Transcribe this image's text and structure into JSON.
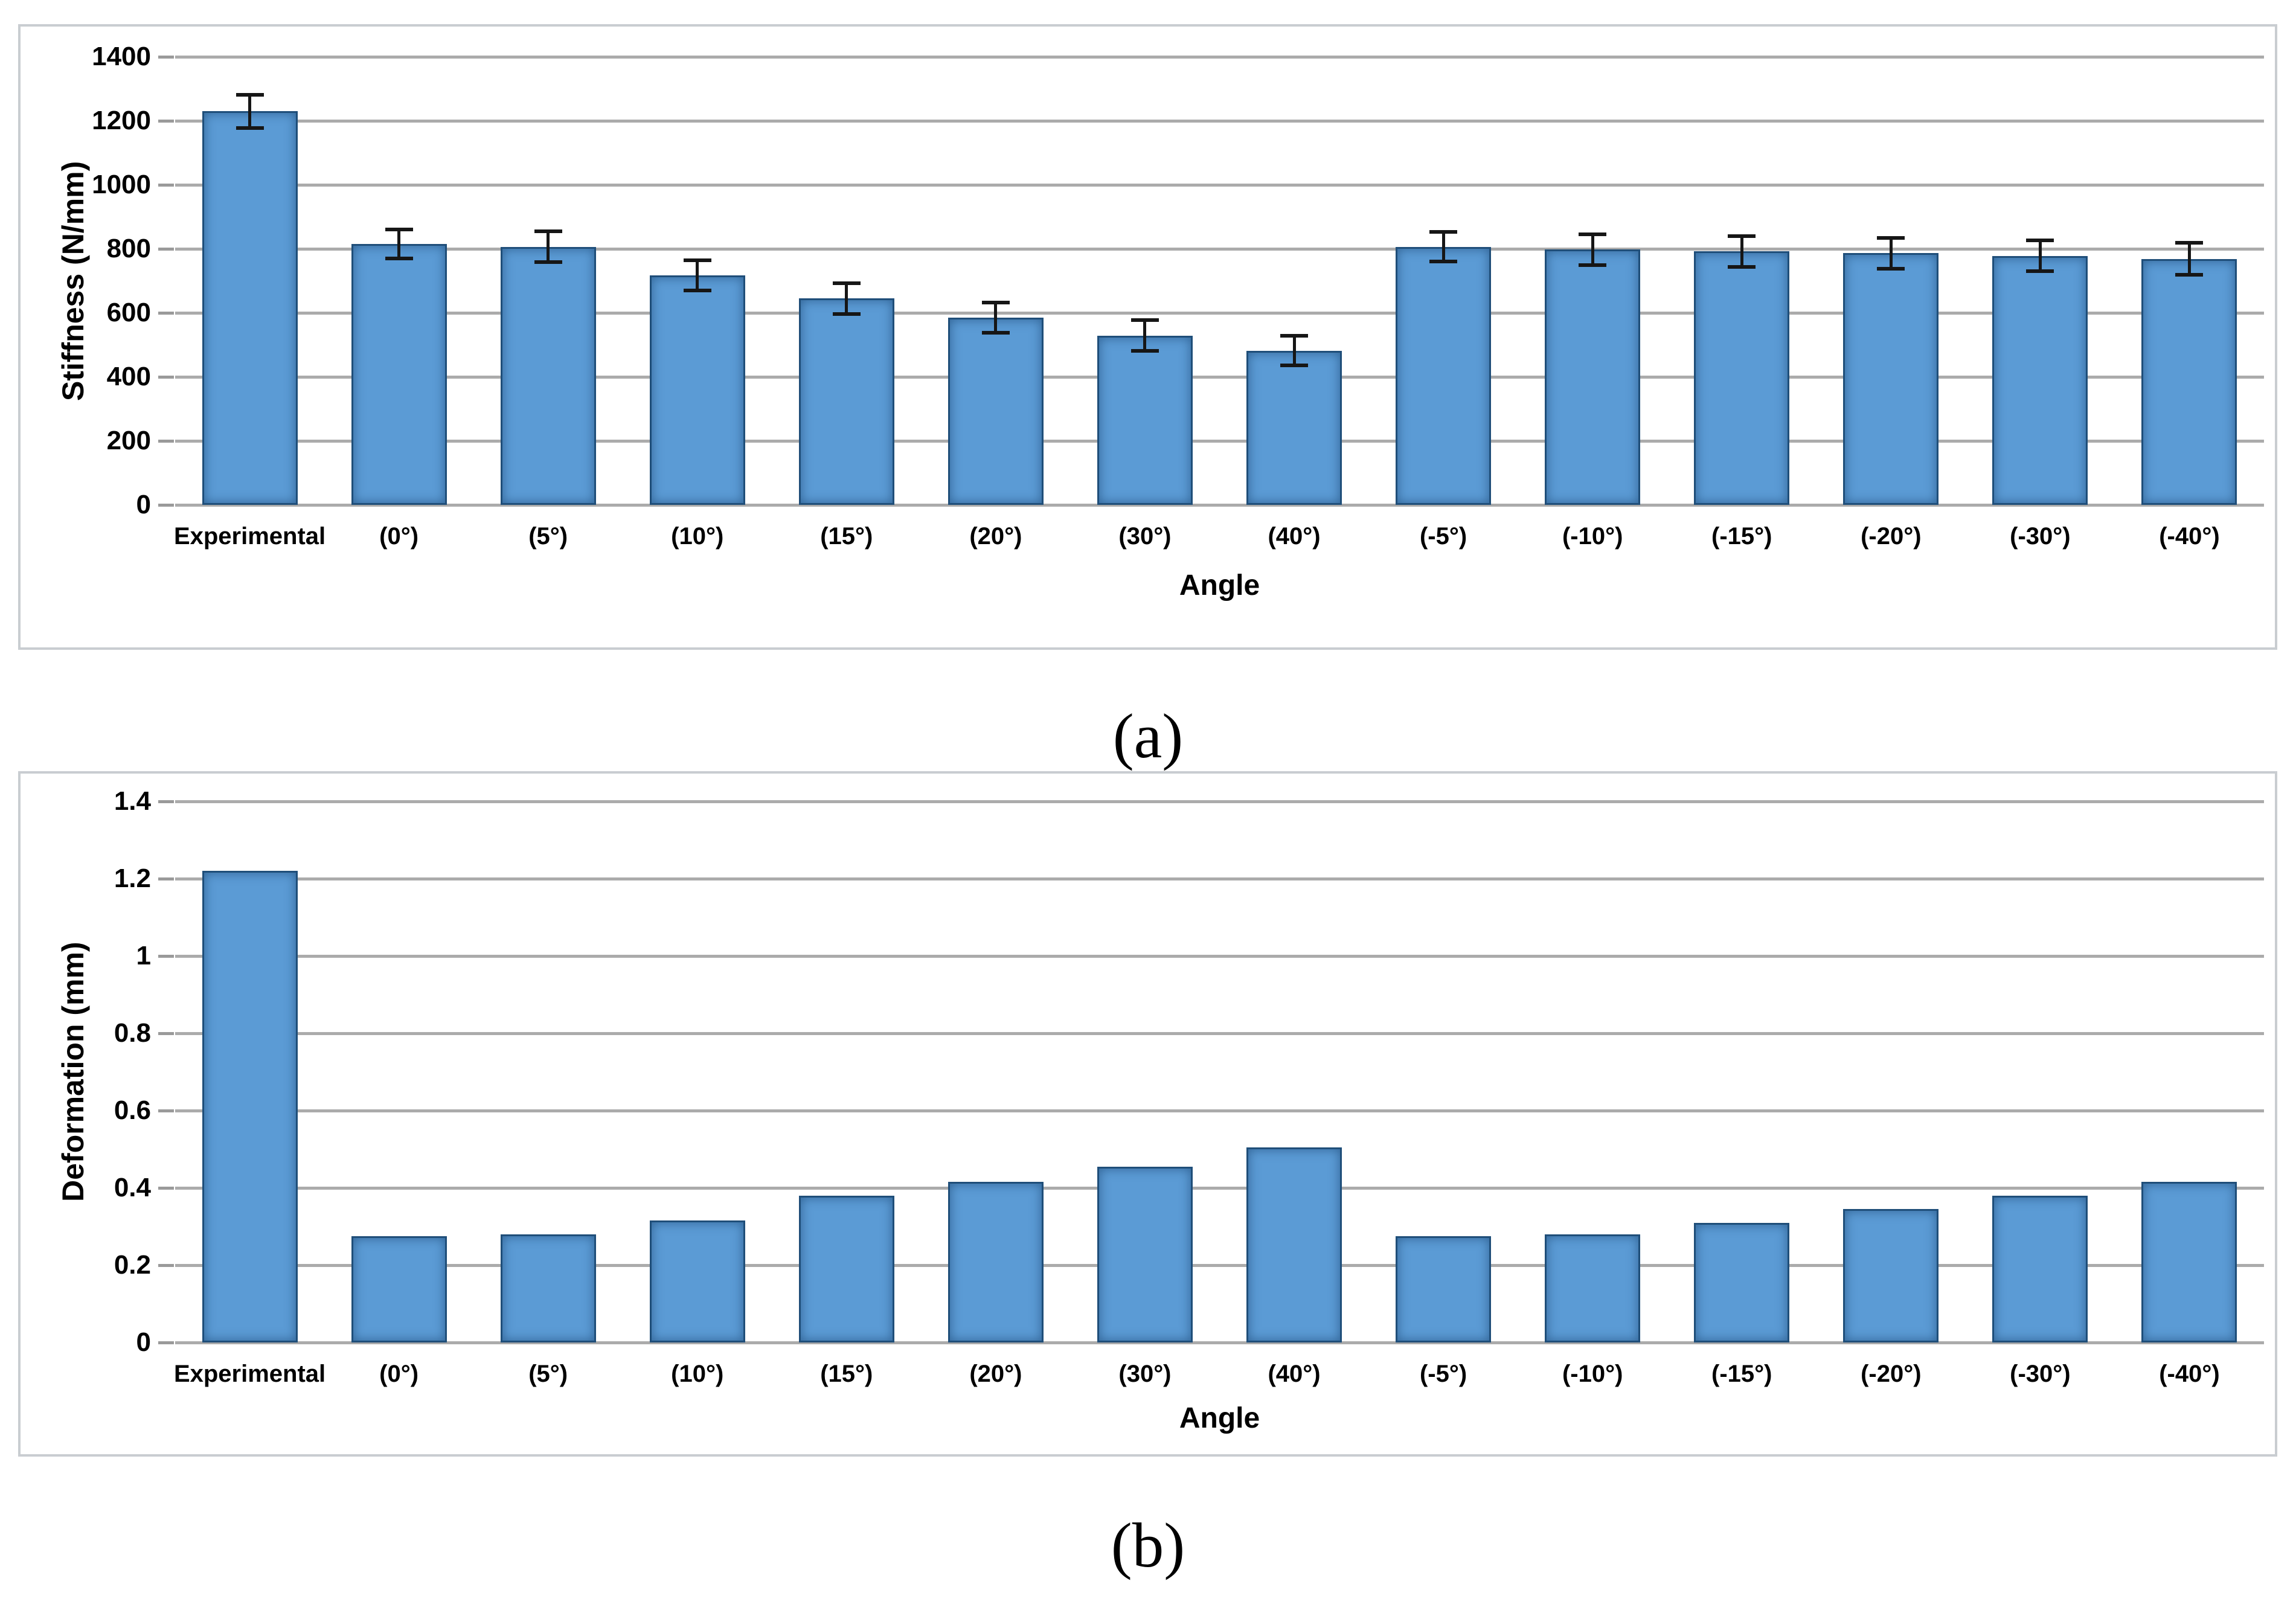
{
  "page": {
    "background": "#ffffff",
    "captions": {
      "a": "(a)",
      "b": "(b)"
    }
  },
  "colors": {
    "bar_fill": "#5b9bd5",
    "bar_border": "#1f4e79",
    "gridline": "#ababab",
    "tick": "#9a9a9a",
    "panel_border": "#c9cdd1",
    "error_bar": "#161616",
    "text": "#000000"
  },
  "chart_data": [
    {
      "id": "stiffness",
      "type": "bar",
      "title": "",
      "xlabel": "Angle",
      "ylabel": "Stiffness (N/mm)",
      "ylim": [
        0,
        1400
      ],
      "ytick_step": 200,
      "yticks": [
        0,
        200,
        400,
        600,
        800,
        1000,
        1200,
        1400
      ],
      "ytick_labels": [
        "0",
        "200",
        "400",
        "600",
        "800",
        "1000",
        "1200",
        "1400"
      ],
      "grid": true,
      "legend": "none",
      "categories": [
        "Experimental",
        "(0°)",
        "(5°)",
        "(10°)",
        "(15°)",
        "(20°)",
        "(30°)",
        "(40°)",
        "(-5°)",
        "(-10°)",
        "(-15°)",
        "(-20°)",
        "(-30°)",
        "(-40°)"
      ],
      "values": [
        1230,
        815,
        806,
        717,
        645,
        585,
        529,
        482,
        806,
        798,
        792,
        786,
        778,
        768
      ],
      "errors": [
        52,
        45,
        48,
        47,
        48,
        48,
        48,
        47,
        46,
        48,
        48,
        48,
        48,
        50
      ],
      "caption": "(a)"
    },
    {
      "id": "deformation",
      "type": "bar",
      "title": "",
      "xlabel": "Angle",
      "ylabel": "Deformation (mm)",
      "ylim": [
        0,
        1.4
      ],
      "ytick_step": 0.2,
      "yticks": [
        0,
        0.2,
        0.4,
        0.6,
        0.8,
        1,
        1.2,
        1.4
      ],
      "ytick_labels": [
        "0",
        "0.2",
        "0.4",
        "0.6",
        "0.8",
        "1",
        "1.2",
        "1.4"
      ],
      "grid": true,
      "legend": "none",
      "categories": [
        "Experimental",
        "(0°)",
        "(5°)",
        "(10°)",
        "(15°)",
        "(20°)",
        "(30°)",
        "(40°)",
        "(-5°)",
        "(-10°)",
        "(-15°)",
        "(-20°)",
        "(-30°)",
        "(-40°)"
      ],
      "values": [
        1.22,
        0.275,
        0.28,
        0.315,
        0.38,
        0.415,
        0.455,
        0.505,
        0.275,
        0.28,
        0.31,
        0.345,
        0.38,
        0.415
      ],
      "errors": null,
      "caption": "(b)"
    }
  ]
}
